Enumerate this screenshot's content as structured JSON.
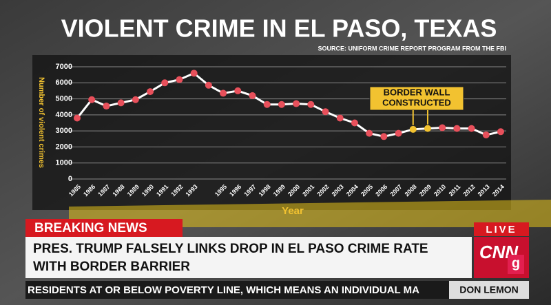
{
  "chart_data": {
    "type": "line",
    "title": "VIOLENT CRIME IN EL PASO, TEXAS",
    "subtitle": "SOURCE: UNIFORM CRIME REPORT PROGRAM FROM THE FBI",
    "x_label": "Year",
    "y_label": "Number of violent crimes",
    "categories": [
      "1985",
      "1986",
      "1987",
      "1988",
      "1989",
      "1990",
      "1991",
      "1992",
      "1993",
      null,
      "1995",
      "1996",
      "1997",
      "1998",
      "1999",
      "2000",
      "2001",
      "2002",
      "2003",
      "2004",
      "2005",
      "2006",
      "2007",
      "2008",
      "2009",
      "2010",
      "2011",
      "2012",
      "2013",
      "2014"
    ],
    "series": [
      {
        "color": "#ffffff",
        "values": [
          3800,
          4950,
          4550,
          4750,
          4950,
          5450,
          6000,
          6200,
          6600,
          5850,
          5350,
          5500,
          5200,
          4650,
          4650,
          4700,
          4650,
          4200,
          3800,
          3500,
          2850,
          2650,
          2850,
          3100,
          3150,
          3200,
          3150,
          3150,
          2750,
          2950
        ],
        "marker_colors": [
          "#e8505b",
          "#e8505b",
          "#e8505b",
          "#e8505b",
          "#e8505b",
          "#e8505b",
          "#e8505b",
          "#e8505b",
          "#e8505b",
          "#e8505b",
          "#e8505b",
          "#e8505b",
          "#e8505b",
          "#e8505b",
          "#e8505b",
          "#e8505b",
          "#e8505b",
          "#e8505b",
          "#e8505b",
          "#e8505b",
          "#e8505b",
          "#e8505b",
          "#e8505b",
          "#f2c230",
          "#f2c230",
          "#e8505b",
          "#e8505b",
          "#e8505b",
          "#e8505b",
          "#e8505b"
        ]
      }
    ],
    "ylim": [
      0,
      7000
    ],
    "yticks": [
      0,
      1000,
      2000,
      3000,
      4000,
      5000,
      6000,
      7000
    ],
    "grid": true,
    "annotation": {
      "lines": [
        "BORDER WALL",
        "CONSTRUCTED"
      ],
      "color": "#f2c230"
    }
  },
  "broadcast": {
    "banner": "BREAKING NEWS",
    "headline": [
      "PRES. TRUMP FALSELY LINKS DROP IN EL PASO CRIME RATE",
      "WITH BORDER BARRIER"
    ],
    "live": "LIVE",
    "network": "CNN",
    "ticker": "RESIDENTS AT OR BELOW POVERTY LINE, WHICH MEANS AN INDIVIDUAL MA",
    "anchor": "DON LEMON",
    "badge": "g"
  }
}
